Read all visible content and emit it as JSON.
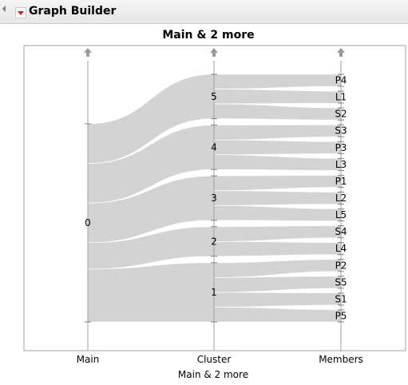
{
  "window": {
    "title": "Graph Builder"
  },
  "icons": {
    "disclosure": "disclosure-triangle-icon",
    "menu": "red-menu-triangle-icon",
    "drop_zone": "up-arrow-icon"
  },
  "colors": {
    "band": "#d3d3d3",
    "axis": "#a0a0a0",
    "frame": "#a0a0a0",
    "arrow": "#9a9a9a"
  },
  "chart_data": {
    "type": "parallel-sets",
    "title": "Main & 2 more",
    "xlabel": "Main & 2 more",
    "axes": [
      "Main",
      "Cluster",
      "Members"
    ],
    "levels": {
      "Main": [
        "0"
      ],
      "Cluster": [
        "5",
        "4",
        "3",
        "2",
        "1"
      ],
      "Members": [
        "P4",
        "L1",
        "S2",
        "S3",
        "P3",
        "L3",
        "P1",
        "L2",
        "L5",
        "S4",
        "L4",
        "P2",
        "S5",
        "S1",
        "P5"
      ]
    },
    "flows": [
      {
        "from": "0",
        "cluster": "5",
        "member": "P4",
        "value": 1
      },
      {
        "from": "0",
        "cluster": "5",
        "member": "L1",
        "value": 1
      },
      {
        "from": "0",
        "cluster": "5",
        "member": "S2",
        "value": 1
      },
      {
        "from": "0",
        "cluster": "4",
        "member": "S3",
        "value": 1
      },
      {
        "from": "0",
        "cluster": "4",
        "member": "P3",
        "value": 1
      },
      {
        "from": "0",
        "cluster": "4",
        "member": "L3",
        "value": 1
      },
      {
        "from": "0",
        "cluster": "3",
        "member": "P1",
        "value": 1
      },
      {
        "from": "0",
        "cluster": "3",
        "member": "L2",
        "value": 1
      },
      {
        "from": "0",
        "cluster": "3",
        "member": "L5",
        "value": 1
      },
      {
        "from": "0",
        "cluster": "2",
        "member": "S4",
        "value": 1
      },
      {
        "from": "0",
        "cluster": "2",
        "member": "L4",
        "value": 1
      },
      {
        "from": "0",
        "cluster": "1",
        "member": "P2",
        "value": 1
      },
      {
        "from": "0",
        "cluster": "1",
        "member": "S5",
        "value": 1
      },
      {
        "from": "0",
        "cluster": "1",
        "member": "S1",
        "value": 1
      },
      {
        "from": "0",
        "cluster": "1",
        "member": "P5",
        "value": 1
      }
    ],
    "grid": false,
    "legend": "none"
  }
}
